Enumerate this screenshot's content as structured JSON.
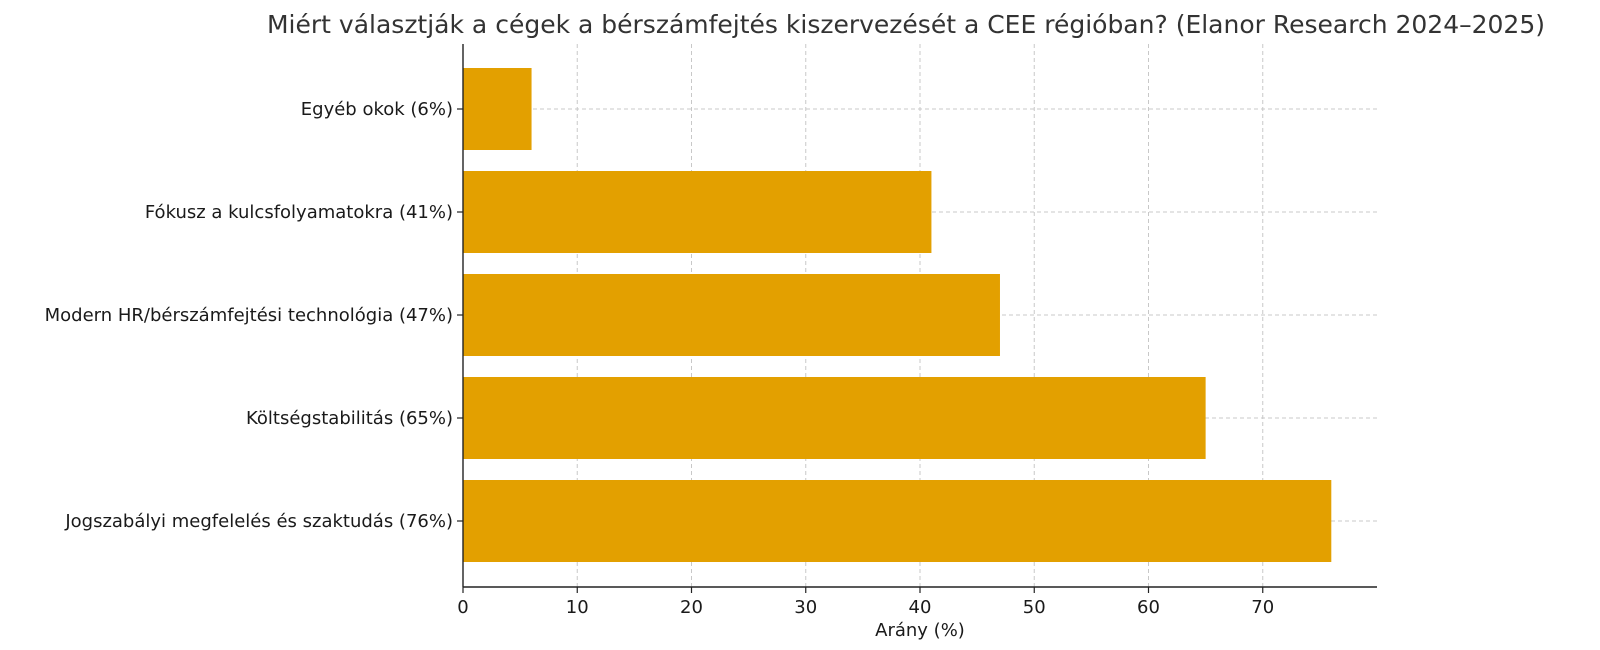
{
  "chart_data": {
    "type": "bar",
    "orientation": "horizontal",
    "title": "Miért választják a cégek a bérszámfejtés kiszervezését a CEE régióban? (Elanor Research 2024–2025)",
    "xlabel": "Arány (%)",
    "ylabel": "",
    "categories": [
      "Jogszabályi megfelelés és szaktudás (76%)",
      "Költségstabilitás (65%)",
      "Modern HR/bérszámfejtési technológia (47%)",
      "Fókusz a kulcsfolyamatokra (41%)",
      "Egyéb okok (6%)"
    ],
    "values": [
      76,
      65,
      47,
      41,
      6
    ],
    "xlim": [
      0,
      80
    ],
    "xticks": [
      0,
      10,
      20,
      30,
      40,
      50,
      60,
      70
    ],
    "grid": true,
    "bar_color": "#E3A000"
  }
}
